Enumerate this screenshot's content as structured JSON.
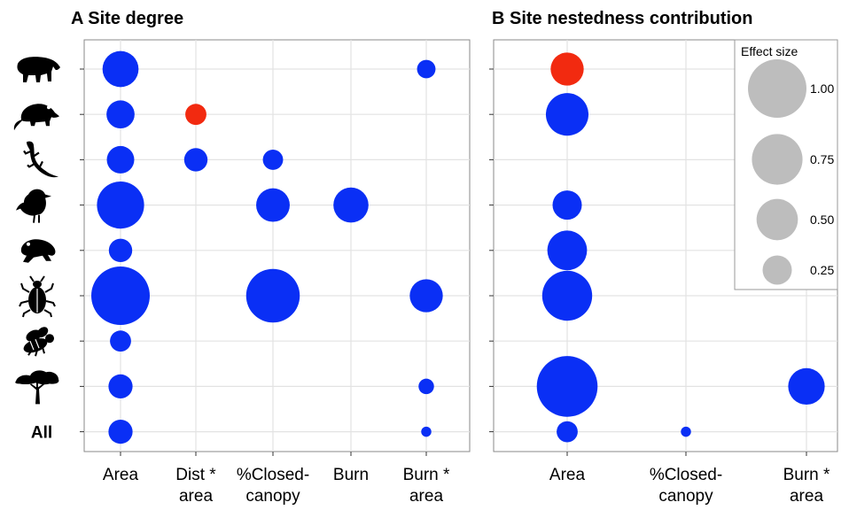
{
  "colors": {
    "negative": "#0a2ff5",
    "positive": "#f22a10",
    "legend": "#bdbdbd",
    "panel_border": "#8a8a8a",
    "grid": "#e3e3e3"
  },
  "rows": [
    {
      "icon": "tapir-icon",
      "label": ""
    },
    {
      "icon": "possum-icon",
      "label": ""
    },
    {
      "icon": "lizard-icon",
      "label": ""
    },
    {
      "icon": "bird-icon",
      "label": ""
    },
    {
      "icon": "frog-icon",
      "label": ""
    },
    {
      "icon": "beetle-icon",
      "label": ""
    },
    {
      "icon": "bee-icon",
      "label": ""
    },
    {
      "icon": "tree-icon",
      "label": ""
    },
    {
      "icon": "",
      "label": "All"
    }
  ],
  "chart_data": [
    {
      "type": "scatter",
      "title": "A Site degree",
      "categories": [
        "Area",
        "Dist *\narea",
        "%Closed-\ncanopy",
        "Burn",
        "Burn *\narea"
      ],
      "points": [
        {
          "row": 0,
          "col": 0,
          "effect": 0.38,
          "sign": "negative"
        },
        {
          "row": 0,
          "col": 4,
          "effect": 0.1,
          "sign": "negative"
        },
        {
          "row": 1,
          "col": 0,
          "effect": 0.23,
          "sign": "negative"
        },
        {
          "row": 1,
          "col": 1,
          "effect": 0.13,
          "sign": "positive"
        },
        {
          "row": 2,
          "col": 0,
          "effect": 0.22,
          "sign": "negative"
        },
        {
          "row": 2,
          "col": 1,
          "effect": 0.16,
          "sign": "negative"
        },
        {
          "row": 2,
          "col": 2,
          "effect": 0.12,
          "sign": "negative"
        },
        {
          "row": 3,
          "col": 0,
          "effect": 0.65,
          "sign": "negative"
        },
        {
          "row": 3,
          "col": 2,
          "effect": 0.33,
          "sign": "negative"
        },
        {
          "row": 3,
          "col": 3,
          "effect": 0.36,
          "sign": "negative"
        },
        {
          "row": 4,
          "col": 0,
          "effect": 0.16,
          "sign": "negative"
        },
        {
          "row": 5,
          "col": 0,
          "effect": 1.0,
          "sign": "negative"
        },
        {
          "row": 5,
          "col": 2,
          "effect": 0.84,
          "sign": "negative"
        },
        {
          "row": 5,
          "col": 4,
          "effect": 0.32,
          "sign": "negative"
        },
        {
          "row": 6,
          "col": 0,
          "effect": 0.13,
          "sign": "negative"
        },
        {
          "row": 7,
          "col": 0,
          "effect": 0.17,
          "sign": "negative"
        },
        {
          "row": 7,
          "col": 4,
          "effect": 0.07,
          "sign": "negative"
        },
        {
          "row": 8,
          "col": 0,
          "effect": 0.17,
          "sign": "negative"
        },
        {
          "row": 8,
          "col": 4,
          "effect": 0.03,
          "sign": "negative"
        }
      ]
    },
    {
      "type": "scatter",
      "title": "B Site nestedness contribution",
      "categories": [
        "Area",
        "%Closed-\ncanopy",
        "Burn *\narea"
      ],
      "points": [
        {
          "row": 0,
          "col": 0,
          "effect": 0.32,
          "sign": "positive"
        },
        {
          "row": 1,
          "col": 0,
          "effect": 0.53,
          "sign": "negative"
        },
        {
          "row": 3,
          "col": 0,
          "effect": 0.25,
          "sign": "negative"
        },
        {
          "row": 4,
          "col": 0,
          "effect": 0.46,
          "sign": "negative"
        },
        {
          "row": 5,
          "col": 0,
          "effect": 0.73,
          "sign": "negative"
        },
        {
          "row": 7,
          "col": 0,
          "effect": 1.08,
          "sign": "negative"
        },
        {
          "row": 7,
          "col": 2,
          "effect": 0.39,
          "sign": "negative"
        },
        {
          "row": 8,
          "col": 0,
          "effect": 0.13,
          "sign": "negative"
        },
        {
          "row": 8,
          "col": 1,
          "effect": 0.03,
          "sign": "negative"
        }
      ],
      "legend": {
        "title": "Effect size",
        "position": "top-right",
        "entries": [
          {
            "label": "1.00",
            "value": 1.0
          },
          {
            "label": "0.75",
            "value": 0.75
          },
          {
            "label": "0.50",
            "value": 0.5
          },
          {
            "label": "0.25",
            "value": 0.25
          }
        ]
      }
    }
  ]
}
